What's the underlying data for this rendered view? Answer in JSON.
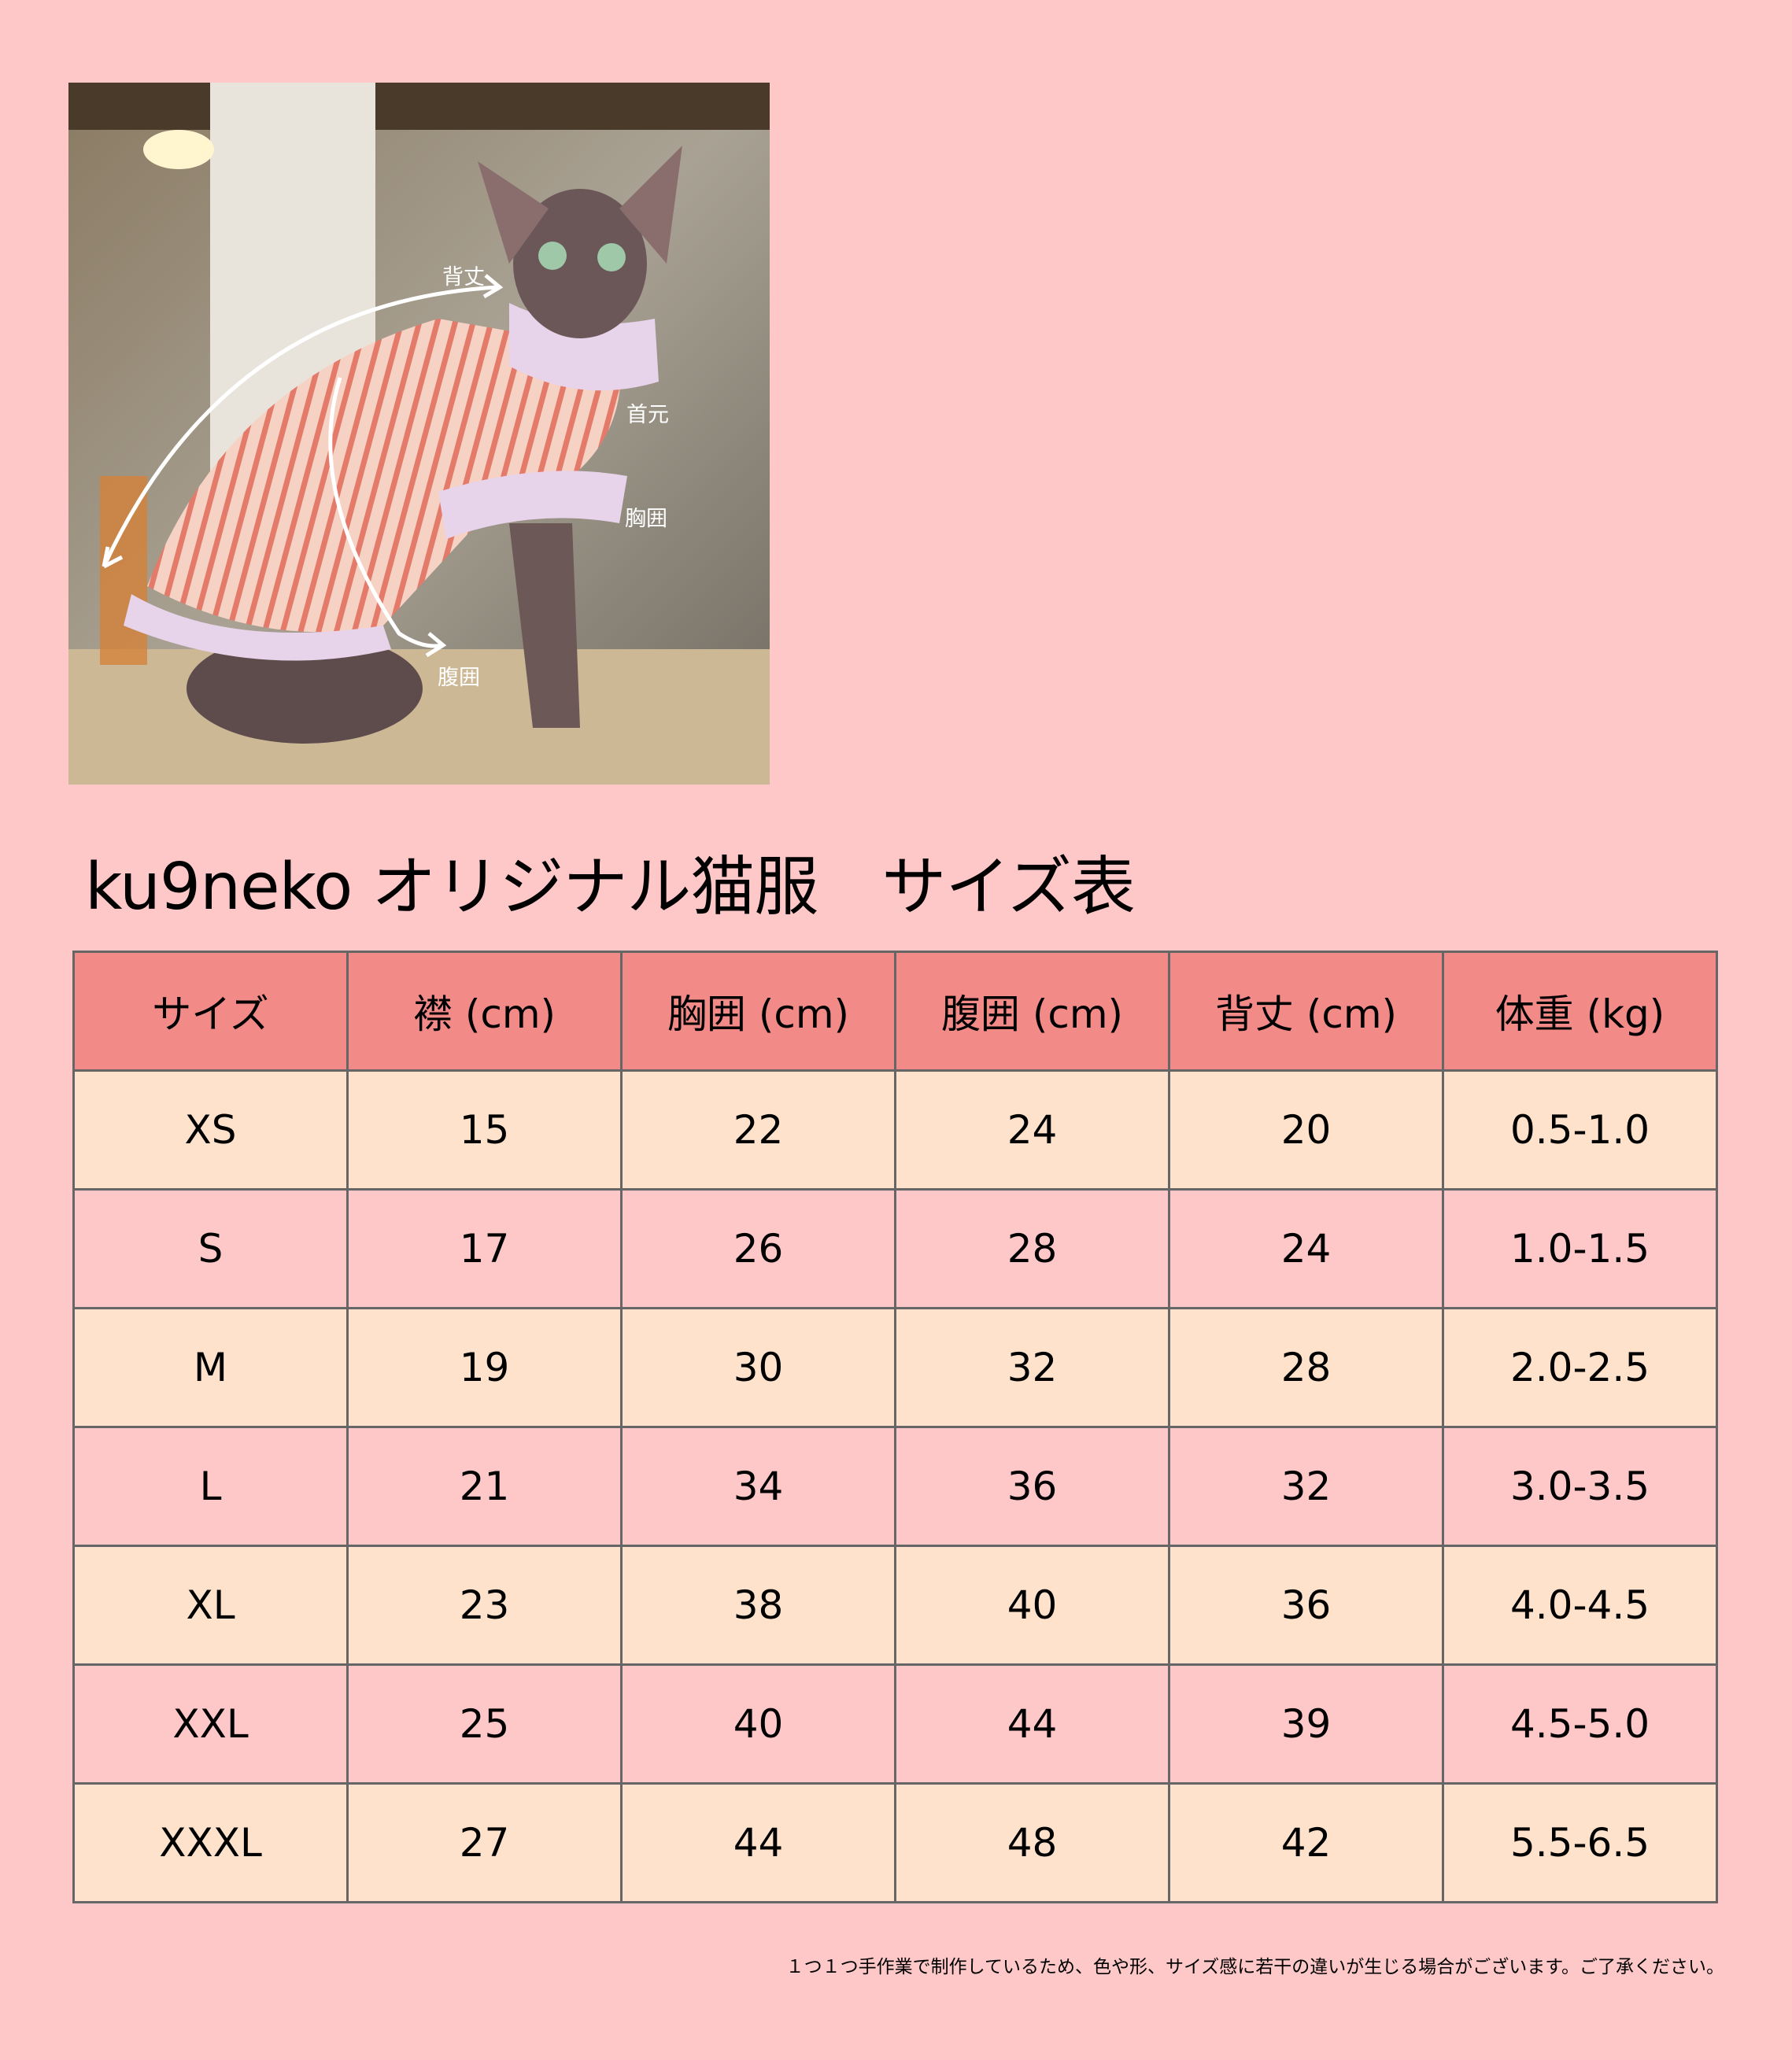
{
  "photo": {
    "labels": {
      "back_length": "背丈",
      "neck": "首元",
      "chest": "胸囲",
      "belly": "腹囲"
    }
  },
  "title": "ku9neko オリジナル猫服　サイズ表",
  "table": {
    "headers": [
      "サイズ",
      "襟 (cm)",
      "胸囲 (cm)",
      "腹囲 (cm)",
      "背丈 (cm)",
      "体重 (kg)"
    ],
    "rows": [
      [
        "XS",
        "15",
        "22",
        "24",
        "20",
        "0.5-1.0"
      ],
      [
        "S",
        "17",
        "26",
        "28",
        "24",
        "1.0-1.5"
      ],
      [
        "M",
        "19",
        "30",
        "32",
        "28",
        "2.0-2.5"
      ],
      [
        "L",
        "21",
        "34",
        "36",
        "32",
        "3.0-3.5"
      ],
      [
        "XL",
        "23",
        "38",
        "40",
        "36",
        "4.0-4.5"
      ],
      [
        "XXL",
        "25",
        "40",
        "44",
        "39",
        "4.5-5.0"
      ],
      [
        "XXXL",
        "27",
        "44",
        "48",
        "42",
        "5.5-6.5"
      ]
    ]
  },
  "note": "１つ１つ手作業で制作しているため、色や形、サイズ感に若干の違いが生じる場合がございます。ご了承ください。",
  "colors": {
    "background": "#FFC8C8",
    "header": "#F28A88",
    "row_odd": "#FFE2CC",
    "row_even": "#FFC8C8"
  }
}
